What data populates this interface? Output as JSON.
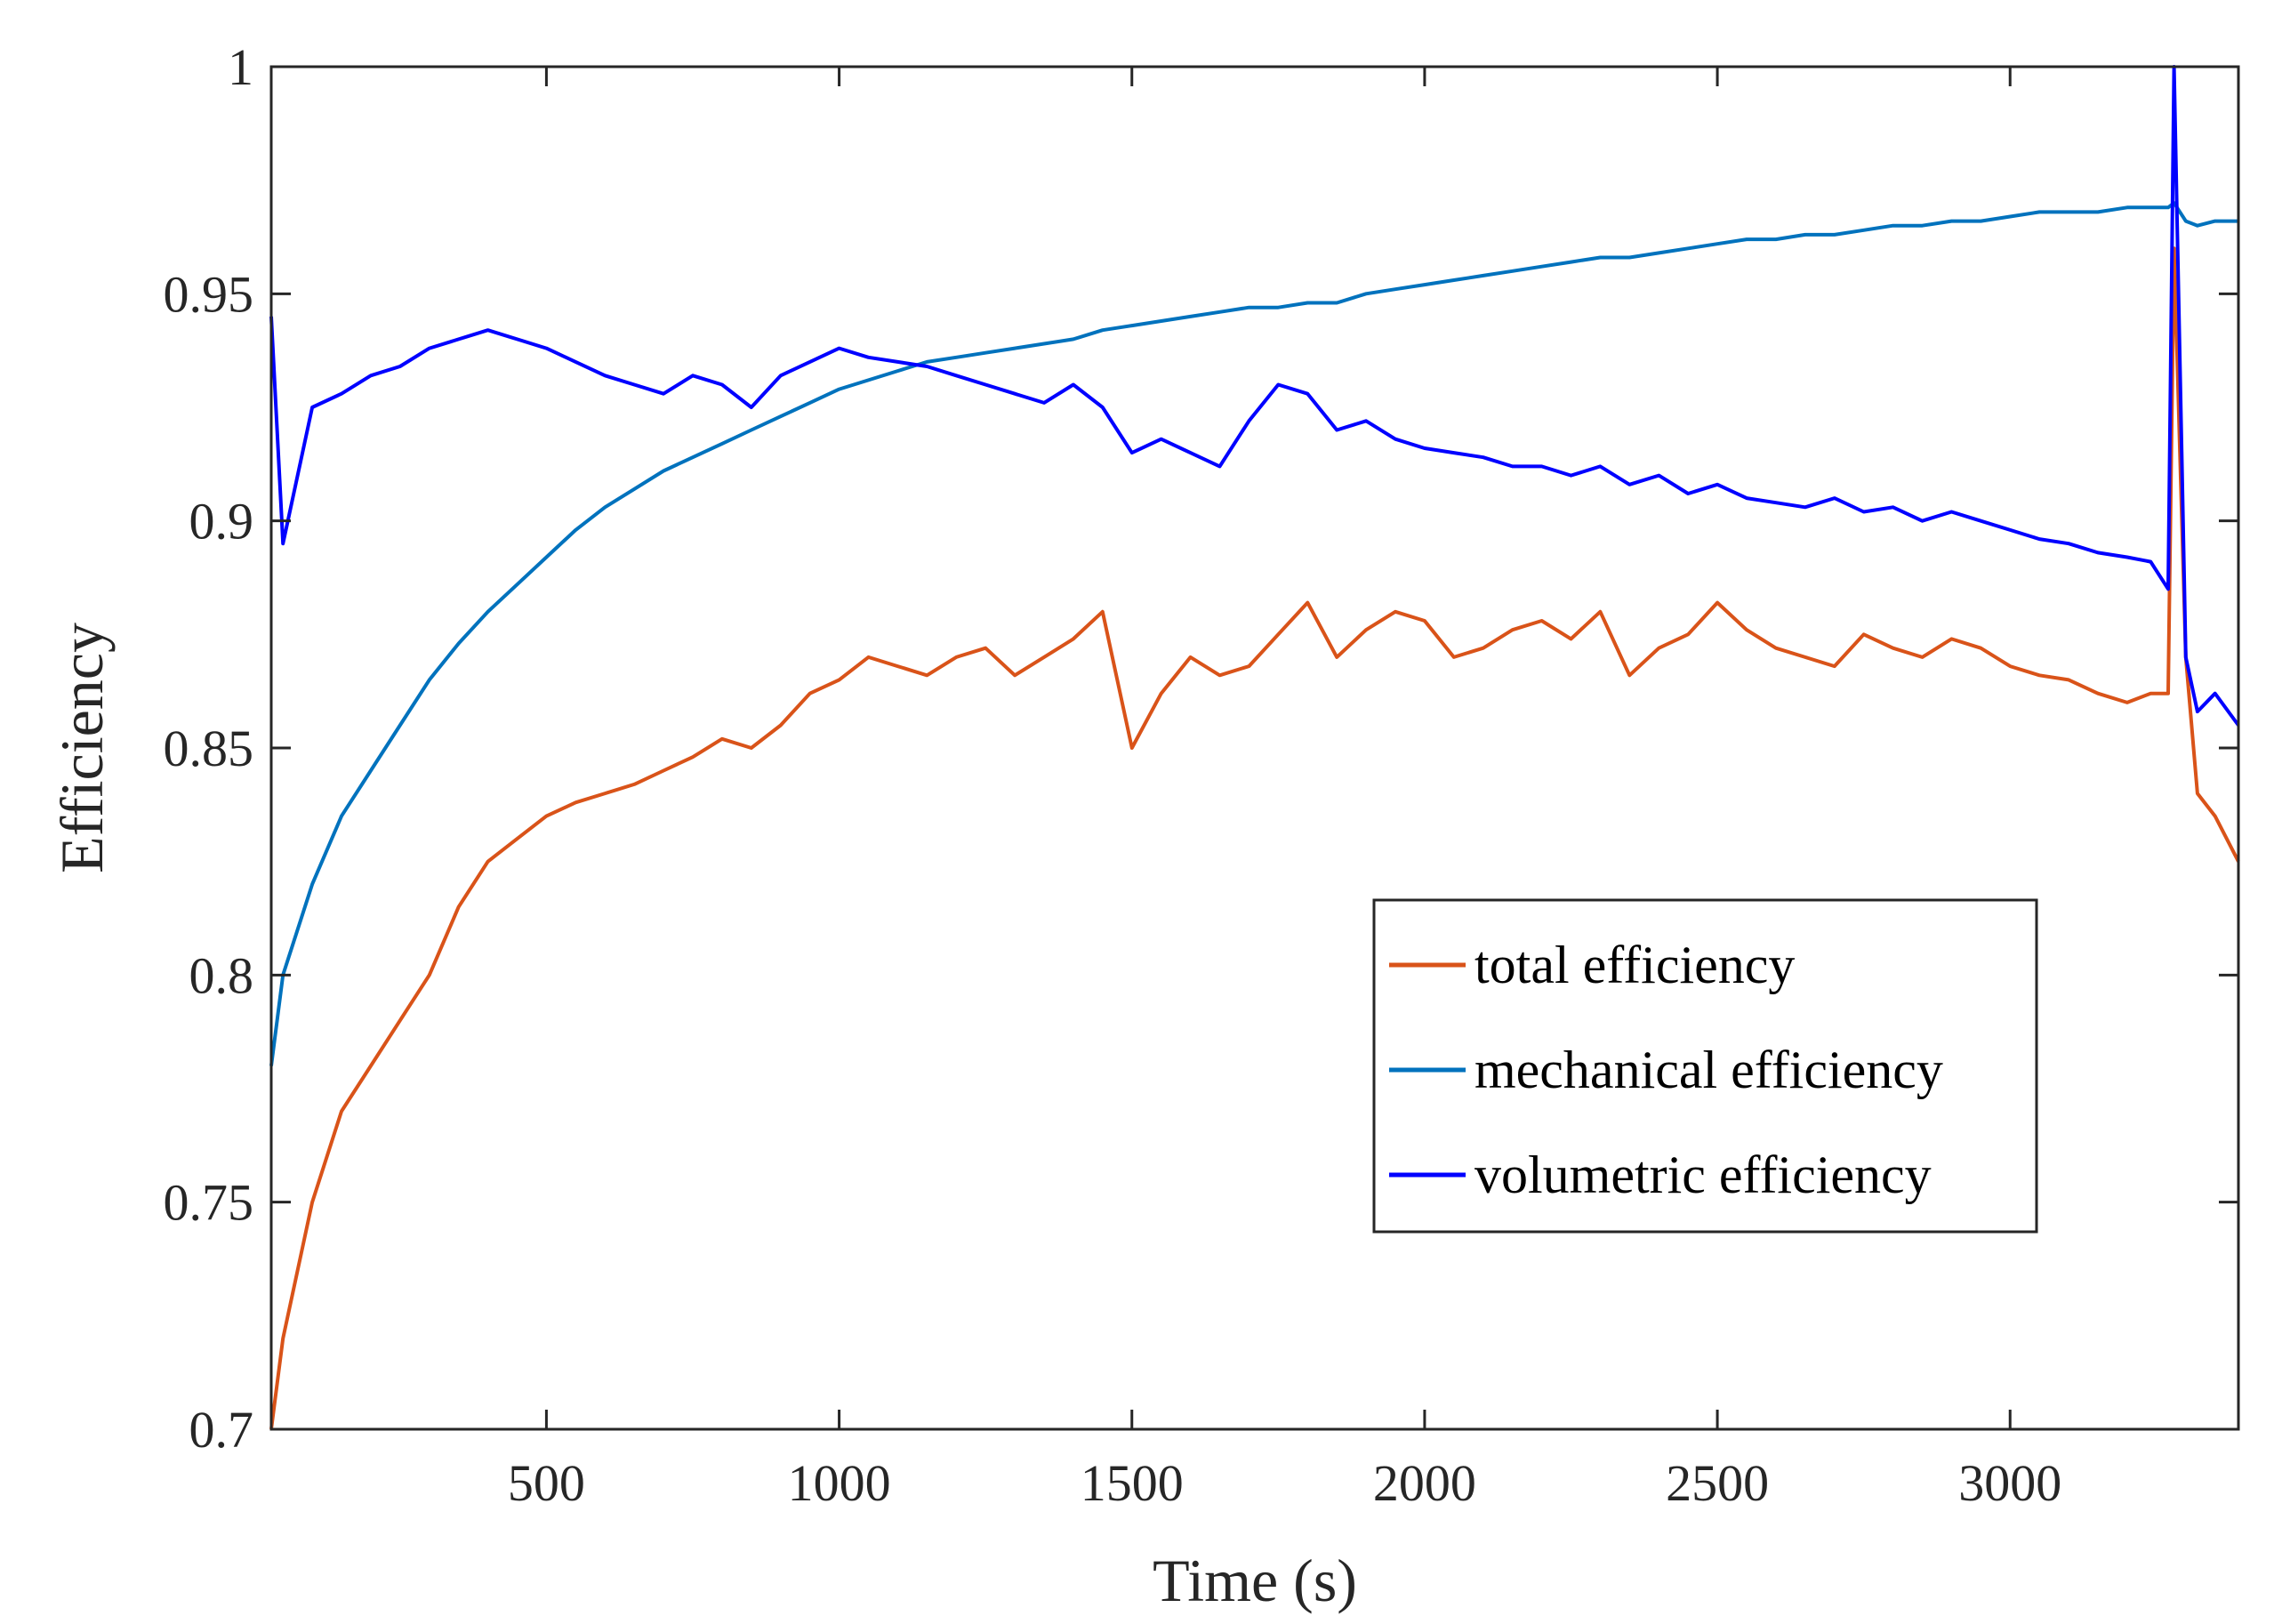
{
  "chart_data": {
    "type": "line",
    "title": "",
    "xlabel": "Time (s)",
    "ylabel": "Efficiency",
    "xlim": [
      30,
      3390
    ],
    "ylim": [
      0.7,
      1.0
    ],
    "xticks": [
      500,
      1000,
      1500,
      2000,
      2500,
      3000
    ],
    "xtick_labels": [
      "500",
      "1000",
      "1500",
      "2000",
      "2500",
      "3000"
    ],
    "yticks": [
      0.7,
      0.75,
      0.8,
      0.85,
      0.9,
      0.95,
      1.0
    ],
    "ytick_labels": [
      "0.7",
      "0.75",
      "0.8",
      "0.85",
      "0.9",
      "0.95",
      "1"
    ],
    "grid": false,
    "legend_position": "lower-right",
    "x": [
      30,
      50,
      100,
      150,
      200,
      250,
      300,
      350,
      400,
      450,
      500,
      550,
      600,
      650,
      700,
      750,
      800,
      850,
      900,
      950,
      1000,
      1050,
      1100,
      1150,
      1200,
      1250,
      1300,
      1350,
      1400,
      1450,
      1500,
      1550,
      1600,
      1650,
      1700,
      1750,
      1800,
      1850,
      1900,
      1950,
      2000,
      2050,
      2100,
      2150,
      2200,
      2250,
      2300,
      2350,
      2400,
      2450,
      2500,
      2550,
      2600,
      2650,
      2700,
      2750,
      2800,
      2850,
      2900,
      2950,
      3000,
      3050,
      3100,
      3150,
      3200,
      3240,
      3270,
      3280,
      3300,
      3320,
      3350,
      3390
    ],
    "series": [
      {
        "name": "total efficiency",
        "color": "#D95319",
        "values": [
          0.7,
          0.72,
          0.75,
          0.77,
          0.78,
          0.79,
          0.8,
          0.815,
          0.825,
          0.83,
          0.835,
          0.838,
          0.84,
          0.842,
          0.845,
          0.848,
          0.852,
          0.85,
          0.855,
          0.862,
          0.865,
          0.87,
          0.868,
          0.866,
          0.87,
          0.872,
          0.866,
          0.87,
          0.874,
          0.88,
          0.85,
          0.862,
          0.87,
          0.866,
          0.868,
          0.875,
          0.882,
          0.87,
          0.876,
          0.88,
          0.878,
          0.87,
          0.872,
          0.876,
          0.878,
          0.874,
          0.88,
          0.866,
          0.872,
          0.875,
          0.882,
          0.876,
          0.872,
          0.87,
          0.868,
          0.875,
          0.872,
          0.87,
          0.874,
          0.872,
          0.868,
          0.866,
          0.865,
          0.862,
          0.86,
          0.862,
          0.862,
          0.96,
          0.87,
          0.84,
          0.835,
          0.825
        ]
      },
      {
        "name": "mechanical efficiency",
        "color": "#0072BD",
        "values": [
          0.78,
          0.8,
          0.82,
          0.835,
          0.845,
          0.855,
          0.865,
          0.873,
          0.88,
          0.886,
          0.892,
          0.898,
          0.903,
          0.907,
          0.911,
          0.914,
          0.917,
          0.92,
          0.923,
          0.926,
          0.929,
          0.931,
          0.933,
          0.935,
          0.936,
          0.937,
          0.938,
          0.939,
          0.94,
          0.942,
          0.943,
          0.944,
          0.945,
          0.946,
          0.947,
          0.947,
          0.948,
          0.948,
          0.95,
          0.951,
          0.952,
          0.953,
          0.954,
          0.955,
          0.956,
          0.957,
          0.958,
          0.958,
          0.959,
          0.96,
          0.961,
          0.962,
          0.962,
          0.963,
          0.963,
          0.964,
          0.965,
          0.965,
          0.966,
          0.966,
          0.967,
          0.968,
          0.968,
          0.968,
          0.969,
          0.969,
          0.969,
          0.97,
          0.966,
          0.965,
          0.966,
          0.966
        ]
      },
      {
        "name": "volumetric efficiency",
        "color": "#0000FF",
        "values": [
          0.945,
          0.895,
          0.925,
          0.928,
          0.932,
          0.934,
          0.938,
          0.94,
          0.942,
          0.94,
          0.938,
          0.935,
          0.932,
          0.93,
          0.928,
          0.932,
          0.93,
          0.925,
          0.932,
          0.935,
          0.938,
          0.936,
          0.935,
          0.934,
          0.932,
          0.93,
          0.928,
          0.926,
          0.93,
          0.925,
          0.915,
          0.918,
          0.915,
          0.912,
          0.922,
          0.93,
          0.928,
          0.92,
          0.922,
          0.918,
          0.916,
          0.915,
          0.914,
          0.912,
          0.912,
          0.91,
          0.912,
          0.908,
          0.91,
          0.906,
          0.908,
          0.905,
          0.904,
          0.903,
          0.905,
          0.902,
          0.903,
          0.9,
          0.902,
          0.9,
          0.898,
          0.896,
          0.895,
          0.893,
          0.892,
          0.891,
          0.885,
          1.0,
          0.87,
          0.858,
          0.862,
          0.855
        ]
      }
    ]
  }
}
